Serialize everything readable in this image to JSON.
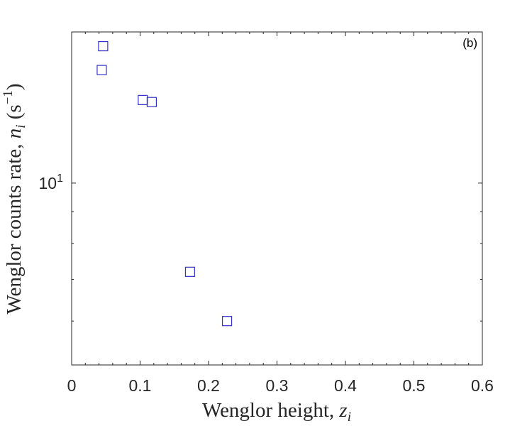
{
  "chart_data": {
    "type": "scatter",
    "title": "",
    "panel_label": "(b)",
    "xlabel": "Wenglor height, ",
    "xlabel_var": "z",
    "xlabel_sub": "i",
    "ylabel": "Wenglor counts rate, ",
    "ylabel_var": "n",
    "ylabel_sub": "i",
    "ylabel_unit_open": " (s",
    "ylabel_unit_exp": "−1",
    "ylabel_unit_close": ")",
    "xlim": [
      0,
      0.6
    ],
    "ylim": [
      5.1,
      17.5
    ],
    "yscale": "log",
    "x_ticks": [
      {
        "value": 0,
        "label": "0"
      },
      {
        "value": 0.1,
        "label": "0.1"
      },
      {
        "value": 0.2,
        "label": "0.2"
      },
      {
        "value": 0.3,
        "label": "0.3"
      },
      {
        "value": 0.4,
        "label": "0.4"
      },
      {
        "value": 0.5,
        "label": "0.5"
      },
      {
        "value": 0.6,
        "label": "0.6"
      }
    ],
    "y_major_tick": {
      "value": 10,
      "base": "10",
      "exponent": "1"
    },
    "y_minor_ticks": [
      6,
      7,
      8,
      9
    ],
    "grid": false,
    "marker": "square-open",
    "marker_color": "#3333cc",
    "points": [
      {
        "x": 0.046,
        "y": 16.6
      },
      {
        "x": 0.044,
        "y": 15.2
      },
      {
        "x": 0.104,
        "y": 13.6
      },
      {
        "x": 0.117,
        "y": 13.5
      },
      {
        "x": 0.173,
        "y": 7.2
      },
      {
        "x": 0.227,
        "y": 6.0
      }
    ]
  }
}
